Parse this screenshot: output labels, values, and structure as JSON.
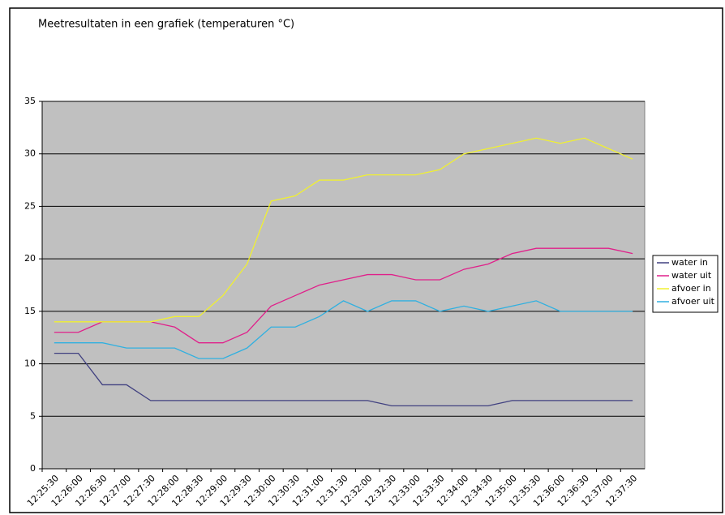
{
  "chart_data": {
    "type": "line",
    "title": "Meetresultaten in een grafiek (temperaturen °C)",
    "categories": [
      "12:25:30",
      "12:26:00",
      "12:26:30",
      "12:27:00",
      "12:27:30",
      "12:28:00",
      "12:28:30",
      "12:29:00",
      "12:29:30",
      "12:30:00",
      "12:30:30",
      "12:31:00",
      "12:31:30",
      "12:32:00",
      "12:32:30",
      "12:33:00",
      "12:33:30",
      "12:34:00",
      "12:34:30",
      "12:35:00",
      "12:35:30",
      "12:36:00",
      "12:36:30",
      "12:37:00",
      "12:37:30"
    ],
    "series": [
      {
        "name": "water in",
        "color": "#404080",
        "values": [
          11,
          11,
          8,
          8,
          6.5,
          6.5,
          6.5,
          6.5,
          6.5,
          6.5,
          6.5,
          6.5,
          6.5,
          6.5,
          6,
          6,
          6,
          6,
          6,
          6.5,
          6.5,
          6.5,
          6.5,
          6.5,
          6.5
        ]
      },
      {
        "name": "water uit",
        "color": "#e0208a",
        "values": [
          13,
          13,
          14,
          14,
          14,
          13.5,
          12,
          12,
          13,
          15.5,
          16.5,
          17.5,
          18,
          18.5,
          18.5,
          18,
          18,
          19,
          19.5,
          20.5,
          21,
          21,
          21,
          21,
          20.5
        ]
      },
      {
        "name": "afvoer in",
        "color": "#f0f030",
        "values": [
          14,
          14,
          14,
          14,
          14,
          14.5,
          14.5,
          16.5,
          19.5,
          25.5,
          26,
          27.5,
          27.5,
          28,
          28,
          28,
          28.5,
          30,
          30.5,
          31,
          31.5,
          31,
          31.5,
          30.5,
          29.5
        ]
      },
      {
        "name": "afvoer uit",
        "color": "#30b0e0",
        "values": [
          12,
          12,
          12,
          11.5,
          11.5,
          11.5,
          10.5,
          10.5,
          11.5,
          13.5,
          13.5,
          14.5,
          16,
          15,
          16,
          16,
          15,
          15.5,
          15,
          15.5,
          16,
          15,
          15,
          15,
          15
        ]
      }
    ],
    "ylim": [
      0,
      35
    ],
    "yticks": [
      0,
      5,
      10,
      15,
      20,
      25,
      30,
      35
    ],
    "grid": true,
    "legend": "right"
  }
}
